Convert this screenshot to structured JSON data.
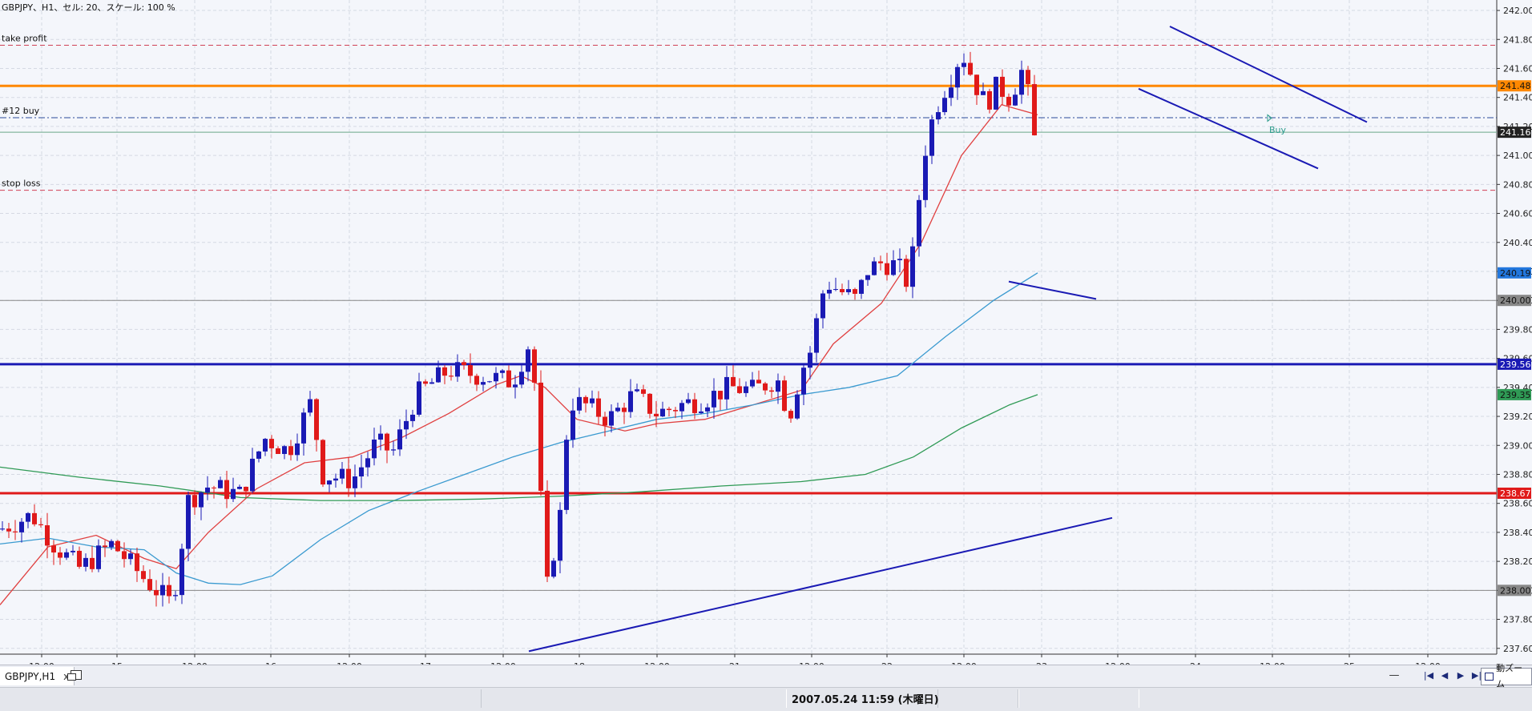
{
  "header": {
    "text": "GBPJPY、H1、セル: 20、スケール: 100 %"
  },
  "lines": {
    "take_profit": {
      "label": "take profit",
      "price": 241.76,
      "color": "#d04055"
    },
    "order": {
      "label": "#12 buy",
      "price": 241.26,
      "color": "#2a4a9a"
    },
    "stop_loss": {
      "label": "stop loss",
      "price": 240.76,
      "color": "#d04055"
    },
    "buy_marker": {
      "label": "Buy"
    }
  },
  "price_tags": [
    {
      "price": 241.48,
      "text": "241.48",
      "bg": "#ff8800",
      "fg": "#111"
    },
    {
      "price": 241.16,
      "text": "241.16",
      "bg": "#222222",
      "fg": "#ffffff"
    },
    {
      "price": 240.19,
      "text": "240.19",
      "bg": "#2277dd",
      "fg": "#111"
    },
    {
      "price": 240.0,
      "text": "240.00",
      "bg": "#888888",
      "fg": "#111"
    },
    {
      "price": 239.56,
      "text": "239.56",
      "bg": "#1a1ab4",
      "fg": "#ffffff"
    },
    {
      "price": 239.35,
      "text": "239.35",
      "bg": "#2f9a55",
      "fg": "#111"
    },
    {
      "price": 238.67,
      "text": "238.67",
      "bg": "#e01a1a",
      "fg": "#ffffff"
    },
    {
      "price": 238.0,
      "text": "238.00",
      "bg": "#888888",
      "fg": "#111"
    }
  ],
  "tabs": [
    {
      "label": "GBPJPY,H1",
      "close": "x"
    }
  ],
  "zoom_button": {
    "label": "動ズーム"
  },
  "nav": {
    "first": "|◀",
    "prev": "◀",
    "next": "▶",
    "last": "▶|",
    "minus": "—"
  },
  "status": {
    "datetime": "2007.05.24 11:59 (木曜日)"
  },
  "colors": {
    "background": "#f4f6fb",
    "bull": "#1a1ab4",
    "bear": "#e01a1a",
    "ma_fast": "#e04040",
    "ma_mid": "#3a9ad0",
    "ma_slow": "#2f9a55"
  },
  "chart_data": {
    "type": "candlestick",
    "symbol": "GBPJPY",
    "timeframe": "H1",
    "ylim": [
      237.56,
      242.05
    ],
    "y_ticks": [
      "242.00",
      "241.80",
      "241.60",
      "241.40",
      "241.20",
      "241.00",
      "240.80",
      "240.60",
      "240.40",
      "240.20",
      "240.00",
      "239.80",
      "239.60",
      "239.40",
      "239.20",
      "239.00",
      "238.80",
      "238.60",
      "238.40",
      "238.20",
      "238.00",
      "237.80",
      "237.60"
    ],
    "x_ticks": [
      "12:00",
      "15",
      "12:00",
      "16",
      "12:00",
      "17",
      "12:00",
      "18",
      "12:00",
      "21",
      "12:00",
      "22",
      "12:00",
      "23",
      "12:00",
      "24",
      "12:00",
      "25",
      "12:00"
    ],
    "horizontal_lines": [
      {
        "price": 241.48,
        "color": "#ff8800"
      },
      {
        "price": 240.0,
        "color": "#888888"
      },
      {
        "price": 239.56,
        "color": "#1a1ab4"
      },
      {
        "price": 238.67,
        "color": "#e01a1a"
      },
      {
        "price": 238.0,
        "color": "#888888"
      },
      {
        "price": 241.16,
        "color": "#6aa88a"
      }
    ],
    "trendlines": [
      {
        "from": [
          0,
          237.58
        ],
        "to": [
          48,
          238.5
        ]
      },
      {
        "from": [
          20,
          240.13
        ],
        "to": [
          27,
          240.01
        ]
      },
      {
        "from": [
          28,
          241.89
        ],
        "to": [
          41,
          241.23
        ]
      },
      {
        "from": [
          27,
          241.46
        ],
        "to": [
          40,
          240.91
        ]
      }
    ],
    "candles": {
      "x_start": 0,
      "x_end": 1295,
      "points": [
        [
          0,
          238.42
        ],
        [
          40,
          238.52
        ],
        [
          70,
          238.3
        ],
        [
          100,
          238.15
        ],
        [
          140,
          238.32
        ],
        [
          180,
          238.08
        ],
        [
          215,
          237.9
        ],
        [
          235,
          238.62
        ],
        [
          260,
          238.72
        ],
        [
          300,
          238.66
        ],
        [
          330,
          239.05
        ],
        [
          360,
          238.96
        ],
        [
          390,
          239.32
        ],
        [
          400,
          238.8
        ],
        [
          440,
          238.76
        ],
        [
          470,
          239.02
        ],
        [
          490,
          238.95
        ],
        [
          520,
          239.35
        ],
        [
          560,
          239.52
        ],
        [
          600,
          239.48
        ],
        [
          640,
          239.44
        ],
        [
          660,
          239.7
        ],
        [
          670,
          239.32
        ],
        [
          680,
          237.93
        ],
        [
          700,
          238.55
        ],
        [
          710,
          239.3
        ],
        [
          730,
          239.28
        ],
        [
          760,
          239.18
        ],
        [
          790,
          239.35
        ],
        [
          820,
          239.22
        ],
        [
          850,
          239.28
        ],
        [
          880,
          239.32
        ],
        [
          910,
          239.4
        ],
        [
          940,
          239.38
        ],
        [
          970,
          239.46
        ],
        [
          985,
          239.2
        ],
        [
          1000,
          239.52
        ],
        [
          1010,
          239.62
        ],
        [
          1030,
          240.13
        ],
        [
          1050,
          240.06
        ],
        [
          1070,
          240.0
        ],
        [
          1080,
          240.2
        ],
        [
          1100,
          240.26
        ],
        [
          1120,
          240.24
        ],
        [
          1135,
          240.1
        ],
        [
          1145,
          240.62
        ],
        [
          1155,
          241.05
        ],
        [
          1165,
          241.28
        ],
        [
          1175,
          241.42
        ],
        [
          1190,
          241.58
        ],
        [
          1200,
          241.72
        ],
        [
          1215,
          241.52
        ],
        [
          1230,
          241.35
        ],
        [
          1245,
          241.48
        ],
        [
          1260,
          241.4
        ],
        [
          1275,
          241.58
        ],
        [
          1285,
          241.38
        ],
        [
          1290,
          241.1
        ],
        [
          1295,
          241.16
        ]
      ]
    },
    "moving_averages": [
      {
        "name": "",
        "color": "#e04040",
        "points": [
          [
            0,
            237.9
          ],
          [
            60,
            238.3
          ],
          [
            120,
            238.38
          ],
          [
            180,
            238.22
          ],
          [
            220,
            238.15
          ],
          [
            260,
            238.4
          ],
          [
            320,
            238.7
          ],
          [
            380,
            238.88
          ],
          [
            440,
            238.92
          ],
          [
            500,
            239.05
          ],
          [
            560,
            239.22
          ],
          [
            620,
            239.42
          ],
          [
            650,
            239.48
          ],
          [
            680,
            239.4
          ],
          [
            720,
            239.18
          ],
          [
            780,
            239.1
          ],
          [
            820,
            239.15
          ],
          [
            880,
            239.18
          ],
          [
            940,
            239.28
          ],
          [
            1000,
            239.38
          ],
          [
            1040,
            239.7
          ],
          [
            1100,
            239.98
          ],
          [
            1150,
            240.4
          ],
          [
            1200,
            241.0
          ],
          [
            1250,
            241.35
          ],
          [
            1295,
            241.28
          ]
        ]
      },
      {
        "name": "",
        "color": "#3a9ad0",
        "points": [
          [
            0,
            238.32
          ],
          [
            60,
            238.36
          ],
          [
            120,
            238.3
          ],
          [
            180,
            238.28
          ],
          [
            220,
            238.12
          ],
          [
            260,
            238.05
          ],
          [
            300,
            238.04
          ],
          [
            340,
            238.1
          ],
          [
            400,
            238.35
          ],
          [
            460,
            238.55
          ],
          [
            520,
            238.68
          ],
          [
            580,
            238.8
          ],
          [
            640,
            238.92
          ],
          [
            700,
            239.02
          ],
          [
            760,
            239.1
          ],
          [
            820,
            239.18
          ],
          [
            880,
            239.22
          ],
          [
            940,
            239.28
          ],
          [
            1000,
            239.35
          ],
          [
            1060,
            239.4
          ],
          [
            1120,
            239.48
          ],
          [
            1180,
            239.75
          ],
          [
            1240,
            240.0
          ],
          [
            1295,
            240.19
          ]
        ]
      },
      {
        "name": "",
        "color": "#2f9a55",
        "points": [
          [
            0,
            238.85
          ],
          [
            100,
            238.78
          ],
          [
            200,
            238.72
          ],
          [
            300,
            238.64
          ],
          [
            400,
            238.62
          ],
          [
            500,
            238.62
          ],
          [
            600,
            238.63
          ],
          [
            700,
            238.65
          ],
          [
            800,
            238.68
          ],
          [
            900,
            238.72
          ],
          [
            1000,
            238.75
          ],
          [
            1080,
            238.8
          ],
          [
            1140,
            238.92
          ],
          [
            1200,
            239.12
          ],
          [
            1260,
            239.28
          ],
          [
            1295,
            239.35
          ]
        ]
      }
    ]
  }
}
